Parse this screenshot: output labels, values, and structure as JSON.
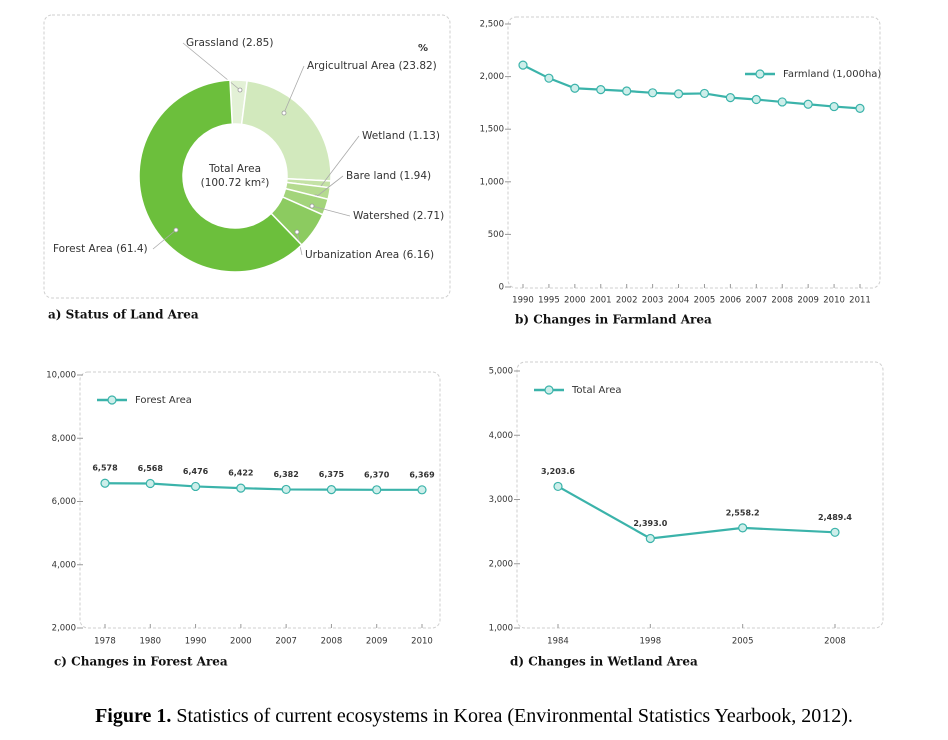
{
  "chart_data": [
    {
      "type": "pie",
      "title": "a) Status of Land Area",
      "unit": "%",
      "center_label": [
        "Total Area",
        "(100.72 km²)"
      ],
      "categories": [
        "Grassland",
        "Argicultrual Area",
        "Wetland",
        "Bare land",
        "Watershed",
        "Urbanization Area",
        "Forest Area"
      ],
      "values": [
        2.85,
        23.82,
        1.13,
        1.94,
        2.71,
        6.16,
        61.4
      ],
      "value_labels": [
        "(2.85)",
        "(23.82)",
        "(1.13)",
        "(1.94)",
        "(2.71)",
        "(6.16)",
        "(61.4)"
      ],
      "colors": [
        "#e3f1d6",
        "#d2e9bd",
        "#c4e2a6",
        "#b5db90",
        "#a3d47b",
        "#8ccb60",
        "#6cbf3c"
      ]
    },
    {
      "type": "line",
      "title": "b) Changes in Farmland Area",
      "categories": [
        "1990",
        "1995",
        "2000",
        "2001",
        "2002",
        "2003",
        "2004",
        "2005",
        "2006",
        "2007",
        "2008",
        "2009",
        "2010",
        "2011"
      ],
      "series": [
        {
          "name": "Farmland (1,000ha)",
          "color": "#3bb3aa",
          "values": [
            2109,
            1985,
            1889,
            1876,
            1863,
            1846,
            1836,
            1840,
            1800,
            1782,
            1759,
            1737,
            1715,
            1698
          ]
        }
      ],
      "ylim": [
        0,
        2500
      ],
      "yticks": [
        0,
        500,
        {
          "value": 1000,
          "label": "1,000"
        },
        {
          "value": 1500,
          "label": "1,500"
        },
        {
          "value": 2000,
          "label": "2,000"
        },
        {
          "value": 2500,
          "label": "2,500"
        }
      ],
      "legend": "upper right"
    },
    {
      "type": "line",
      "title": "c) Changes in Forest Area",
      "categories": [
        "1978",
        "1980",
        "1990",
        "2000",
        "2007",
        "2008",
        "2009",
        "2010"
      ],
      "series": [
        {
          "name": "Forest Area",
          "color": "#3bb3aa",
          "values": [
            6578,
            6568,
            6476,
            6422,
            6382,
            6375,
            6370,
            6369
          ],
          "value_labels": [
            "6,578",
            "6,568",
            "6,476",
            "6,422",
            "6,382",
            "6,375",
            "6,370",
            "6,369"
          ]
        }
      ],
      "ylim": [
        2000,
        10000
      ],
      "yticks": [
        {
          "value": 2000,
          "label": "2,000"
        },
        {
          "value": 4000,
          "label": "4,000"
        },
        {
          "value": 6000,
          "label": "6,000"
        },
        {
          "value": 8000,
          "label": "8,000"
        },
        {
          "value": 10000,
          "label": "10,000"
        }
      ],
      "legend": "upper left"
    },
    {
      "type": "line",
      "title": "d) Changes in Wetland Area",
      "categories": [
        "1984",
        "1998",
        "2005",
        "2008"
      ],
      "series": [
        {
          "name": "Total Area",
          "color": "#3bb3aa",
          "values": [
            3203.6,
            2393,
            2558.2,
            2489.4
          ],
          "value_labels": [
            "3,203.6",
            "2,393.0",
            "2,558.2",
            "2,489.4"
          ]
        }
      ],
      "ylim": [
        1000,
        5000
      ],
      "yticks": [
        {
          "value": 1000,
          "label": "1,000"
        },
        {
          "value": 2000,
          "label": "2,000"
        },
        {
          "value": 3000,
          "label": "3,000"
        },
        {
          "value": 4000,
          "label": "4,000"
        },
        {
          "value": 5000,
          "label": "5,000"
        }
      ],
      "legend": "upper left"
    }
  ],
  "caption": {
    "label": "Figure 1.",
    "text": "Statistics of current ecosystems in Korea (Environmental Statistics Yearbook, 2012)."
  }
}
